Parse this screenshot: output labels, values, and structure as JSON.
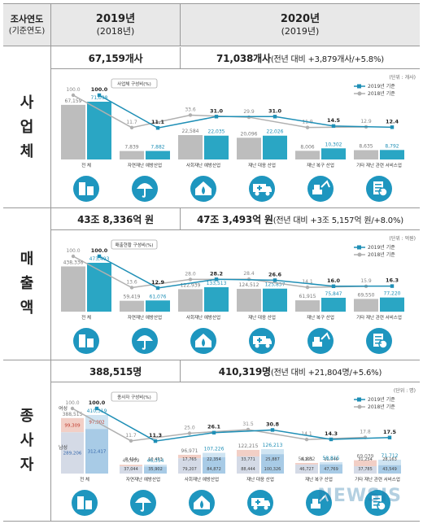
{
  "header": {
    "col1": {
      "title": "조사연도",
      "sub": "(기준연도)"
    },
    "col2": {
      "title": "2019년",
      "sub": "(2018년)"
    },
    "col3": {
      "title": "2020년",
      "sub": "(2019년)"
    }
  },
  "categories": [
    "전 체",
    "자연재난 예방산업",
    "사회재난 예방산업",
    "재난 대응 산업",
    "재난 복구 산업",
    "기타 재난 관련 서비스업"
  ],
  "icons": [
    "building-icon",
    "storm-umbrella-icon",
    "fire-house-icon",
    "ambulance-icon",
    "excavator-icon",
    "document-service-icon"
  ],
  "legend": {
    "a": "2019년 기준",
    "b": "2018년 기준"
  },
  "colors": {
    "bar2019": "#2aa6c4",
    "bar2018": "#bdbdbd",
    "line2019": "#1f8fb6",
    "line2018": "#b0b0b0",
    "icon": "#1e96bf"
  },
  "sections": [
    {
      "label": [
        "사",
        "업",
        "체"
      ],
      "total2019": "67,159개사",
      "total2020": "71,038개사",
      "total2020_note": "(전년 대비 +3,879개사/+5.8%)",
      "unit": "(단위 : 개사)",
      "badge": "사업체 구성비(%)"
    },
    {
      "label": [
        "매",
        "출",
        "액"
      ],
      "total2019": "43조 8,336억 원",
      "total2020": "47조 3,493억 원",
      "total2020_note": "(전년 대비 +3조 5,157억 원/+8.0%)",
      "unit": "(단위 : 억원)",
      "badge": "매출현황 구성비(%)"
    },
    {
      "label": [
        "종",
        "사",
        "자"
      ],
      "total2019": "388,515명",
      "total2020": "410,319명",
      "total2020_note": "(전년 대비 +21,804명/+5.6%)",
      "unit": "(단위 : 명)",
      "badge": "종사자 구성비(%)",
      "gender_labels": {
        "female": "여성",
        "male": "남성"
      }
    }
  ],
  "watermark": "NEWSIS",
  "chart_data": [
    {
      "type": "bar",
      "title": "사업체",
      "categories": [
        "전 체",
        "자연재난 예방산업",
        "사회재난 예방산업",
        "재난 대응 산업",
        "재난 복구 산업",
        "기타 재난 관련 서비스업"
      ],
      "series": [
        {
          "name": "2018년 기준",
          "values": [
            67159,
            7839,
            22584,
            20096,
            8006,
            8635
          ],
          "share": [
            100.0,
            11.7,
            33.6,
            29.9,
            11.9,
            12.9
          ]
        },
        {
          "name": "2019년 기준",
          "values": [
            71038,
            7882,
            22035,
            22026,
            10302,
            8792
          ],
          "share": [
            100.0,
            11.1,
            31.0,
            31.0,
            14.5,
            12.4
          ]
        }
      ]
    },
    {
      "type": "bar",
      "title": "매출액",
      "categories": [
        "전 체",
        "자연재난 예방산업",
        "사회재난 예방산업",
        "재난 대응 산업",
        "재난 복구 산업",
        "기타 재난 관련 서비스업"
      ],
      "series": [
        {
          "name": "2018년 기준",
          "values": [
            438336,
            59419,
            122939,
            124512,
            61915,
            69550
          ],
          "share": [
            100.0,
            13.6,
            28.0,
            28.4,
            14.1,
            15.9
          ]
        },
        {
          "name": "2019년 기준",
          "values": [
            473493,
            61076,
            133513,
            125837,
            75847,
            77220
          ],
          "share": [
            100.0,
            12.9,
            28.2,
            26.6,
            16.0,
            16.3
          ]
        }
      ]
    },
    {
      "type": "bar",
      "title": "종사자",
      "categories": [
        "전 체",
        "자연재난 예방산업",
        "사회재난 예방산업",
        "재난 대응 산업",
        "재난 복구 산업",
        "기타 재난 관련 서비스업"
      ],
      "series": [
        {
          "name": "2018년 기준",
          "values": [
            388515,
            45459,
            96971,
            122215,
            54832,
            69039
          ],
          "female": [
            99309,
            8414,
            17765,
            33771,
            8105,
            31254
          ],
          "male": [
            289206,
            37044,
            79207,
            88444,
            46727,
            37785
          ],
          "share": [
            100.0,
            11.7,
            25.0,
            31.5,
            14.1,
            17.8
          ]
        },
        {
          "name": "2019년 기준",
          "values": [
            410319,
            46354,
            107226,
            126213,
            58815,
            71712
          ],
          "female": [
            97902,
            10453,
            22354,
            25887,
            11046,
            28163
          ],
          "male": [
            312417,
            35902,
            84872,
            100326,
            47769,
            43549
          ],
          "share": [
            100.0,
            11.3,
            26.1,
            30.8,
            14.3,
            17.5
          ]
        }
      ]
    }
  ]
}
